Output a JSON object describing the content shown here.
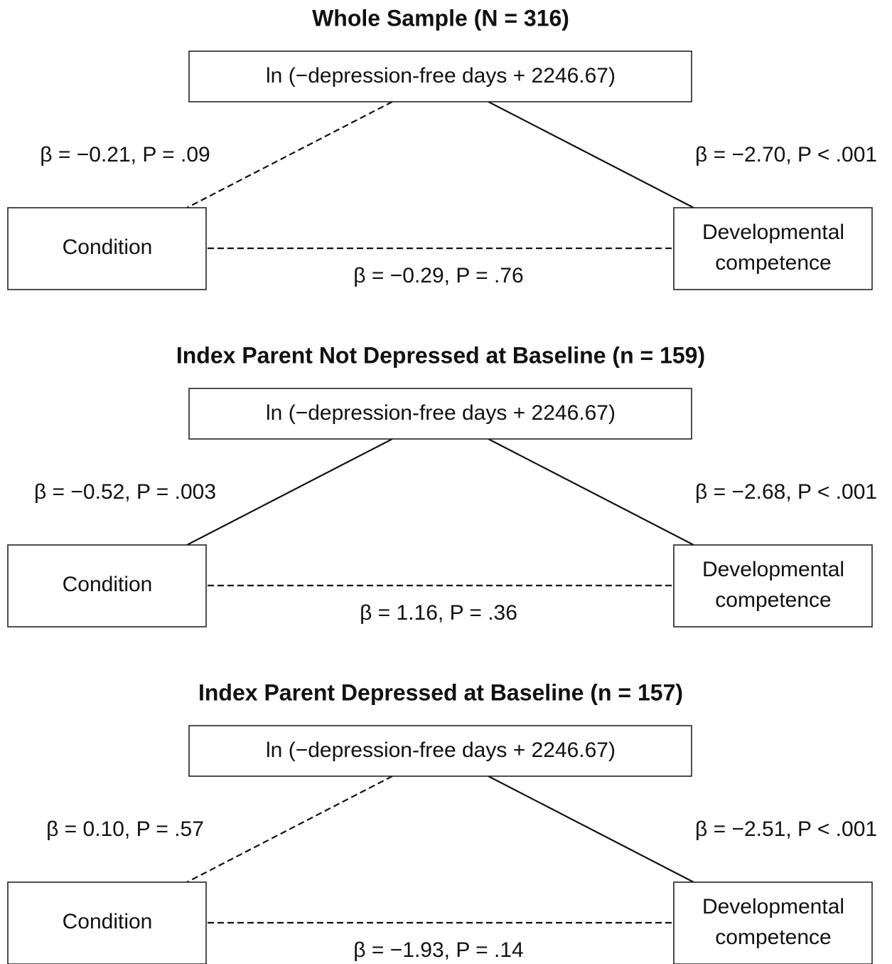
{
  "panels": [
    {
      "title": "Whole Sample (N = 316)",
      "mediator": "ln (−depression-free days + 2246.67)",
      "predictor": "Condition",
      "outcome": [
        "Developmental",
        "competence"
      ],
      "paths": {
        "a": {
          "label": "β = −0.21, P = .09",
          "style": "dashed"
        },
        "b": {
          "label": "β = −2.70, P < .001",
          "style": "solid"
        },
        "c": {
          "label": "β = −0.29, P = .76",
          "style": "dashed"
        }
      }
    },
    {
      "title": "Index Parent Not Depressed at Baseline (n = 159)",
      "mediator": "ln (−depression-free days + 2246.67)",
      "predictor": "Condition",
      "outcome": [
        "Developmental",
        "competence"
      ],
      "paths": {
        "a": {
          "label": "β = −0.52, P = .003",
          "style": "solid"
        },
        "b": {
          "label": "β = −2.68, P < .001",
          "style": "solid"
        },
        "c": {
          "label": "β = 1.16, P = .36",
          "style": "dashed"
        }
      }
    },
    {
      "title": "Index Parent Depressed at Baseline (n = 157)",
      "mediator": "ln (−depression-free days + 2246.67)",
      "predictor": "Condition",
      "outcome": [
        "Developmental",
        "competence"
      ],
      "paths": {
        "a": {
          "label": "β = 0.10, P = .57",
          "style": "dashed"
        },
        "b": {
          "label": "β = −2.51, P < .001",
          "style": "solid"
        },
        "c": {
          "label": "β = −1.93, P = .14",
          "style": "dashed"
        }
      }
    }
  ]
}
